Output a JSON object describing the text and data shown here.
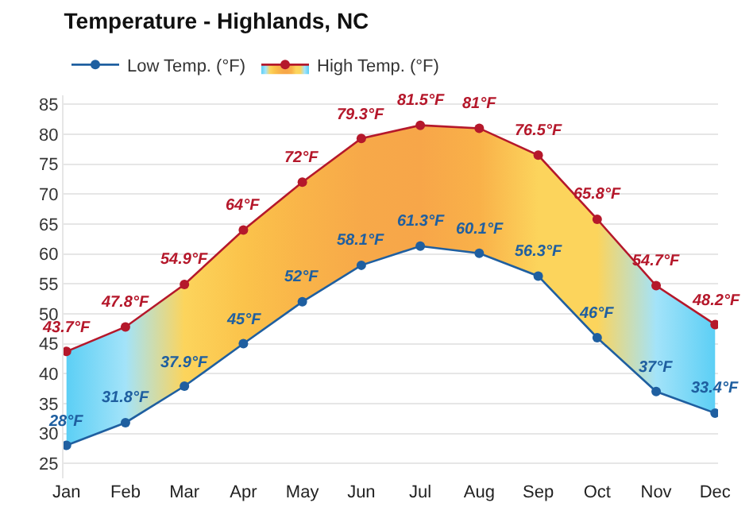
{
  "chart_data": {
    "type": "line",
    "title": "Temperature - Highlands, NC",
    "categories": [
      "Jan",
      "Feb",
      "Mar",
      "Apr",
      "May",
      "Jun",
      "Jul",
      "Aug",
      "Sep",
      "Oct",
      "Nov",
      "Dec"
    ],
    "series": [
      {
        "name": "Low Temp. (°F)",
        "color": "#1f5fa0",
        "values": [
          28,
          31.8,
          37.9,
          45,
          52,
          58.1,
          61.3,
          60.1,
          56.3,
          46,
          37,
          33.4
        ],
        "value_labels": [
          "28°F",
          "31.8°F",
          "37.9°F",
          "45°F",
          "52°F",
          "58.1°F",
          "61.3°F",
          "60.1°F",
          "56.3°F",
          "46°F",
          "37°F",
          "33.4°F"
        ]
      },
      {
        "name": "High Temp. (°F)",
        "type": "area",
        "color": "#b5182b",
        "values": [
          43.7,
          47.8,
          54.9,
          64,
          72,
          79.3,
          81.5,
          81,
          76.5,
          65.8,
          54.7,
          48.2
        ],
        "value_labels": [
          "43.7°F",
          "47.8°F",
          "54.9°F",
          "64°F",
          "72°F",
          "79.3°F",
          "81.5°F",
          "81°F",
          "76.5°F",
          "65.8°F",
          "54.7°F",
          "48.2°F"
        ],
        "colors": [
          "#5ccff5",
          "#a3e3f9",
          "#fcd45c",
          "#fbc34b",
          "#f9b449",
          "#f7a949",
          "#f7a649",
          "#f9b149",
          "#fcd45c",
          "#fcd45c",
          "#a3e3f9",
          "#5ccff5"
        ]
      }
    ],
    "ylim": [
      22.5,
      86.5
    ],
    "yticks": [
      25,
      30,
      35,
      40,
      45,
      50,
      55,
      60,
      65,
      70,
      75,
      80,
      85
    ],
    "grid": "y",
    "legend": "top left",
    "marker": "circle",
    "line_style": "solid"
  }
}
